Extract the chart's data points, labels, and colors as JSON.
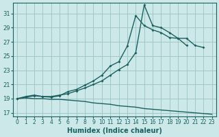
{
  "title": "",
  "xlabel": "Humidex (Indice chaleur)",
  "ylabel": "",
  "bg_color": "#cce8e8",
  "grid_color": "#a0c8c8",
  "line_color": "#1a6060",
  "xlim": [
    -0.5,
    23.5
  ],
  "ylim": [
    16.5,
    32.5
  ],
  "xticks": [
    0,
    1,
    2,
    3,
    4,
    5,
    6,
    7,
    8,
    9,
    10,
    11,
    12,
    13,
    14,
    15,
    16,
    17,
    18,
    19,
    20,
    21,
    22,
    23
  ],
  "yticks": [
    17,
    19,
    21,
    23,
    25,
    27,
    29,
    31
  ],
  "s1x": [
    0,
    1,
    2,
    3,
    4,
    5,
    6,
    7,
    8,
    9,
    10,
    11,
    12,
    13,
    14,
    15,
    16,
    17,
    18,
    19,
    20,
    21,
    22
  ],
  "s1y": [
    19,
    19.3,
    19.5,
    19.3,
    19.3,
    19.5,
    19.7,
    20.1,
    20.5,
    21.0,
    21.5,
    22.3,
    23.1,
    23.8,
    25.5,
    32.2,
    29.3,
    29.0,
    28.3,
    27.5,
    27.5,
    26.5,
    26.2
  ],
  "s2x": [
    0,
    1,
    2,
    3,
    4,
    5,
    6,
    7,
    8,
    9,
    10,
    11,
    12,
    13,
    14,
    15,
    16,
    17,
    18,
    19,
    20
  ],
  "s2y": [
    19,
    19.2,
    19.4,
    19.3,
    19.2,
    19.4,
    20.0,
    20.3,
    20.9,
    21.5,
    22.3,
    23.6,
    24.2,
    26.4,
    30.7,
    29.3,
    28.7,
    28.3,
    27.6,
    27.5,
    26.5
  ],
  "s3x": [
    0,
    1,
    2,
    3,
    4,
    5,
    6,
    7,
    8,
    9,
    10,
    11,
    12,
    13,
    14,
    15,
    16,
    17,
    18,
    19,
    20,
    21,
    22,
    23
  ],
  "s3y": [
    19,
    19.1,
    19.0,
    19.0,
    18.9,
    18.9,
    18.8,
    18.7,
    18.6,
    18.4,
    18.3,
    18.2,
    18.0,
    17.9,
    17.8,
    17.6,
    17.5,
    17.4,
    17.3,
    17.2,
    17.1,
    17.0,
    16.9,
    16.8
  ]
}
